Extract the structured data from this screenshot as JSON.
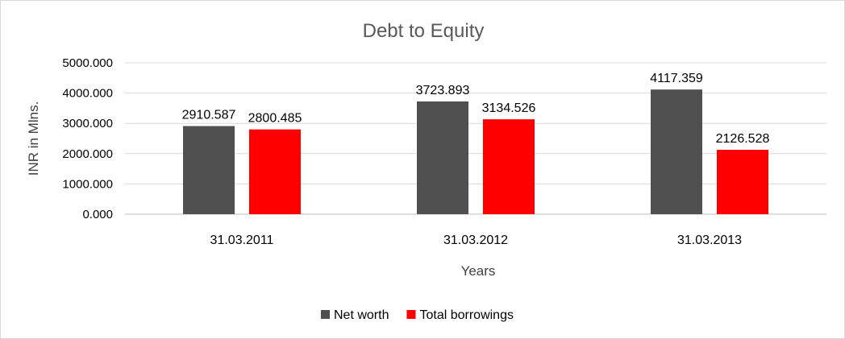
{
  "chart_data": {
    "type": "bar",
    "title": "Debt to Equity",
    "xlabel": "Years",
    "ylabel": "INR in Mlns.",
    "categories": [
      "31.03.2011",
      "31.03.2012",
      "31.03.2013"
    ],
    "series": [
      {
        "name": "Net worth",
        "values": [
          2910.587,
          3723.893,
          4117.359
        ],
        "value_labels": [
          "2910.587",
          "3723.893",
          "4117.359"
        ],
        "color": "#505050"
      },
      {
        "name": "Total borrowings",
        "values": [
          2800.485,
          3134.526,
          2126.528
        ],
        "value_labels": [
          "2800.485",
          "3134.526",
          "2126.528"
        ],
        "color": "#ff0000"
      }
    ],
    "ylim": [
      0,
      5000
    ],
    "yticks": [
      0,
      1000,
      2000,
      3000,
      4000,
      5000
    ],
    "ytick_labels": [
      "0.000",
      "1000.000",
      "2000.000",
      "3000.000",
      "4000.000",
      "5000.000"
    ],
    "grid": true,
    "legend": "bottom"
  }
}
